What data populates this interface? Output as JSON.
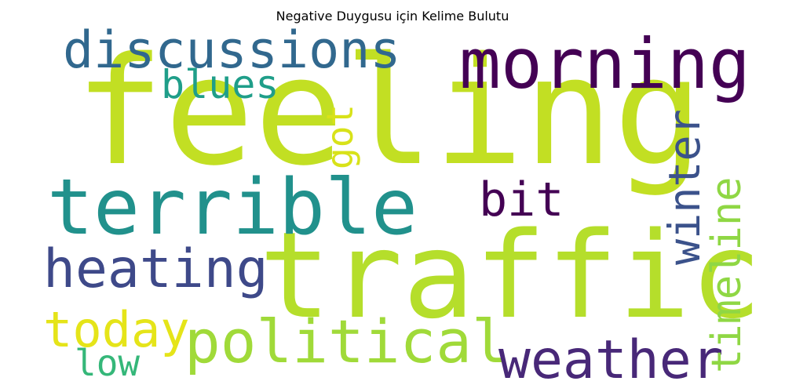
{
  "title": "Negative Duygusu için Kelime Bulutu",
  "words": [
    {
      "text": "feeling",
      "color": "#c2df23"
    },
    {
      "text": "traffic",
      "color": "#b5de2b"
    },
    {
      "text": "terrible",
      "color": "#21918c"
    },
    {
      "text": "morning",
      "color": "#440154"
    },
    {
      "text": "discussions",
      "color": "#31688e"
    },
    {
      "text": "blues",
      "color": "#1f9e89"
    },
    {
      "text": "got",
      "color": "#d8e219"
    },
    {
      "text": "winter",
      "color": "#3b528b"
    },
    {
      "text": "timeline",
      "color": "#8fd744"
    },
    {
      "text": "bit",
      "color": "#440154"
    },
    {
      "text": "heating",
      "color": "#3e4989"
    },
    {
      "text": "political",
      "color": "#a0da39"
    },
    {
      "text": "today",
      "color": "#e5e419"
    },
    {
      "text": "low",
      "color": "#35b779"
    },
    {
      "text": "weather",
      "color": "#482878"
    }
  ]
}
